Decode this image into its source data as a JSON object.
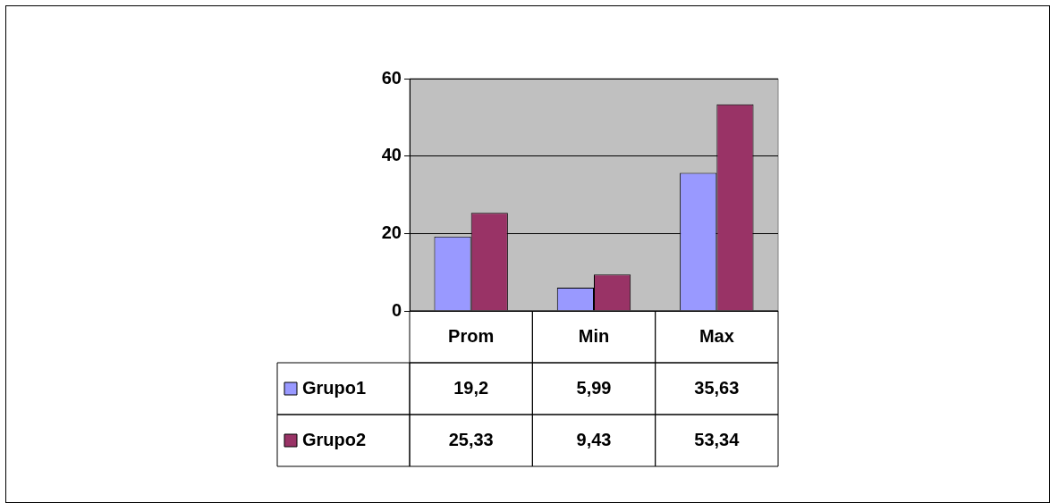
{
  "chart_data": {
    "type": "bar",
    "categories": [
      "Prom",
      "Min",
      "Max"
    ],
    "series": [
      {
        "name": "Grupo1",
        "color": "#9999ff",
        "values": [
          19.2,
          5.99,
          35.63
        ]
      },
      {
        "name": "Grupo2",
        "color": "#993366",
        "values": [
          25.33,
          9.43,
          53.34
        ]
      }
    ],
    "value_labels": [
      [
        "19,2",
        "5,99",
        "35,63"
      ],
      [
        "25,33",
        "9,43",
        "53,34"
      ]
    ],
    "ylim": [
      0,
      60
    ],
    "yticks": [
      0,
      20,
      40,
      60
    ],
    "grid": "y",
    "tick_labels": "y",
    "legend": "bottom left"
  }
}
